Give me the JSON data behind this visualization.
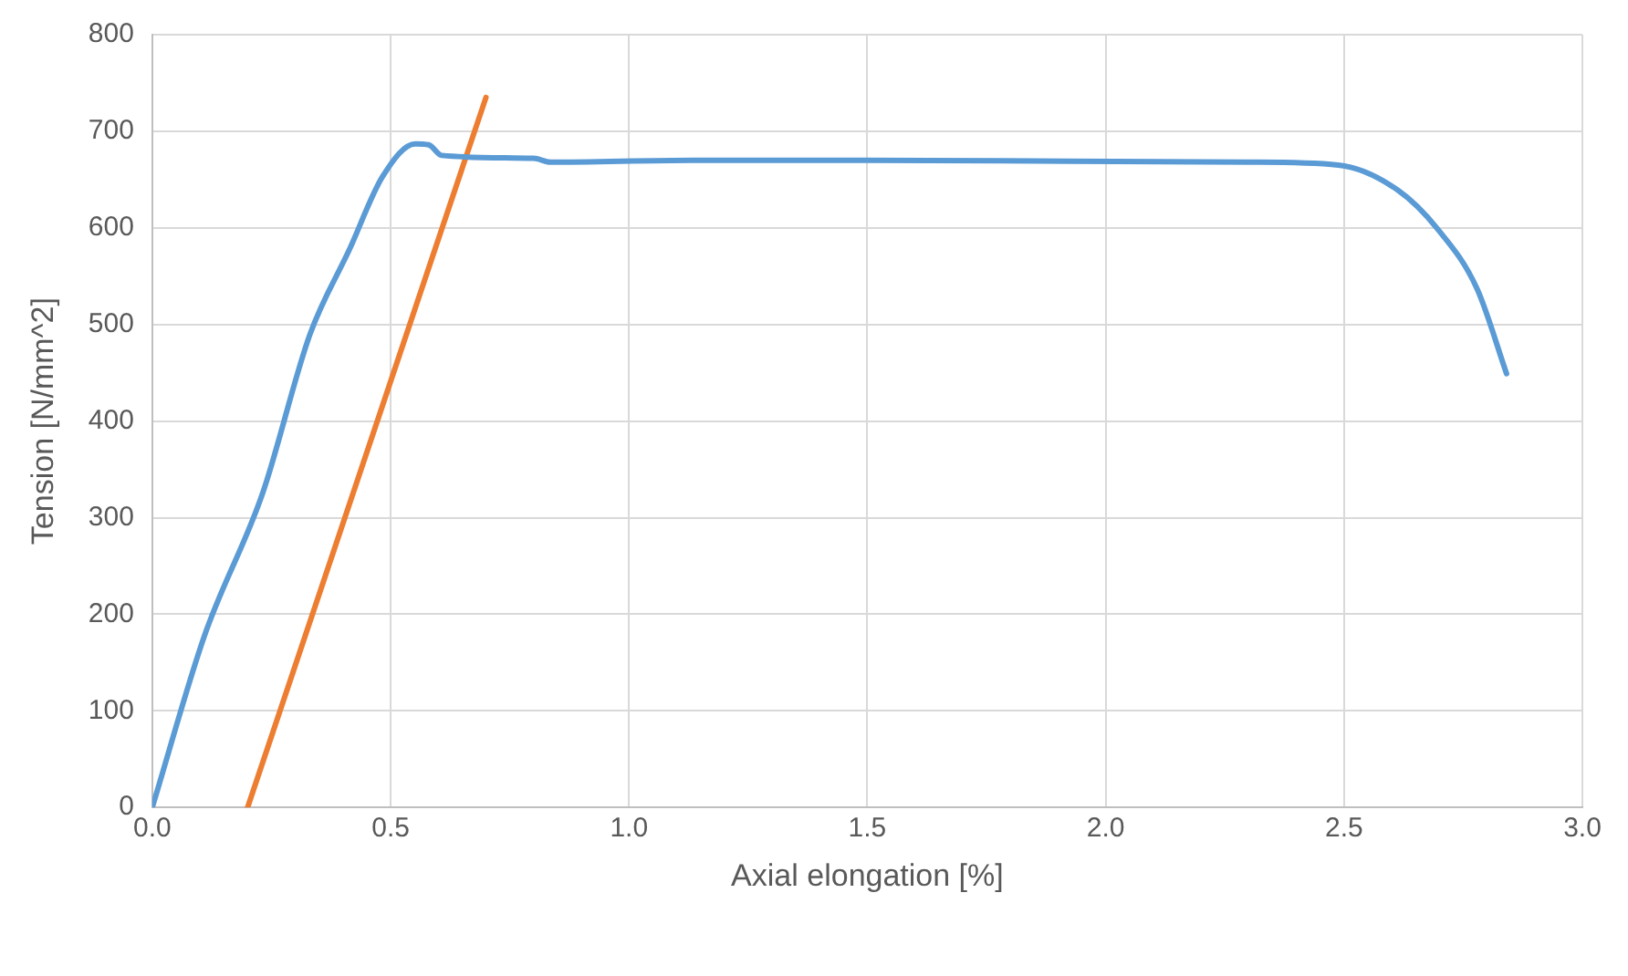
{
  "chart_data": {
    "type": "line",
    "xlabel": "Axial elongation [%]",
    "ylabel": "Tension [N/mm^2]",
    "xlim": [
      0,
      3
    ],
    "xticks": [
      {
        "value": 0,
        "label": "0.0"
      },
      {
        "value": 0.5,
        "label": "0.5"
      },
      {
        "value": 1,
        "label": "1.0"
      },
      {
        "value": 1.5,
        "label": "1.5"
      },
      {
        "value": 2,
        "label": "2.0"
      },
      {
        "value": 2.5,
        "label": "2.5"
      },
      {
        "value": 3,
        "label": "3.0"
      }
    ],
    "ylim": [
      0,
      800
    ],
    "yticks": [
      0,
      100,
      200,
      300,
      400,
      500,
      600,
      700,
      800
    ],
    "grid": true,
    "legend": false,
    "marker": "none",
    "line_style": "solid",
    "series": [
      {
        "color": "#5b9bd5",
        "x": [
          0,
          0.109,
          0.232,
          0.331,
          0.414,
          0.483,
          0.552,
          0.58,
          0.607,
          0.8,
          0.835,
          1.133,
          1.5,
          1.921,
          2.3,
          2.488,
          2.613,
          2.696,
          2.779,
          2.841
        ],
        "values": [
          0,
          177,
          326,
          490,
          578,
          653,
          687,
          686,
          675,
          672,
          668,
          670,
          670,
          669,
          668,
          665,
          639,
          599,
          537,
          449
        ]
      },
      {
        "color": "#ed7d31",
        "x": [
          0.2,
          0.7
        ],
        "values": [
          0,
          735
        ]
      }
    ]
  }
}
